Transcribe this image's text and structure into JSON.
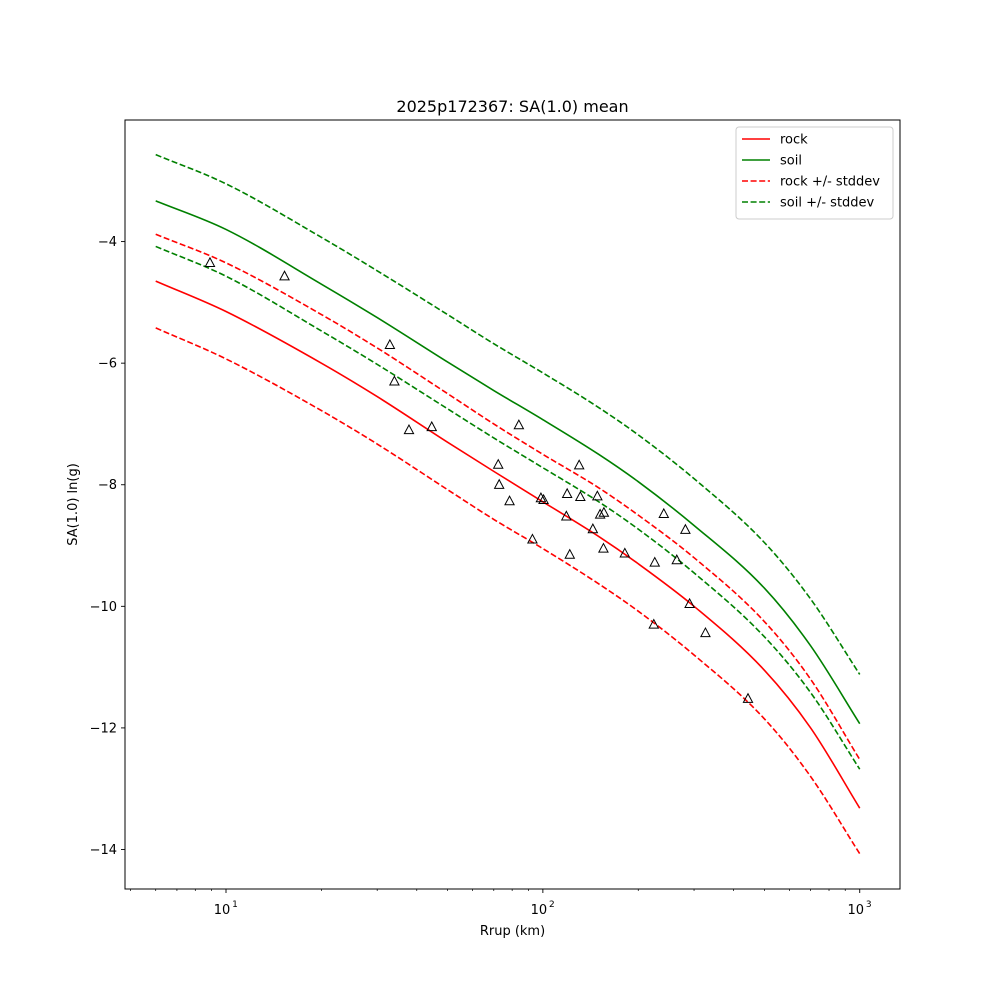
{
  "chart_data": {
    "type": "line",
    "title": "2025p172367: SA(1.0) mean",
    "xlabel": "Rrup (km)",
    "ylabel": "SA(1.0) ln(g)",
    "xscale": "log",
    "xlim": [
      4.8,
      1340
    ],
    "ylim": [
      -14.65,
      -2.0
    ],
    "x_ticks": [
      {
        "value": 10,
        "base": "10",
        "exp": "1"
      },
      {
        "value": 100,
        "base": "10",
        "exp": "2"
      },
      {
        "value": 1000,
        "base": "10",
        "exp": "3"
      }
    ],
    "y_ticks": [
      {
        "value": -4,
        "label": "−4"
      },
      {
        "value": -6,
        "label": "−6"
      },
      {
        "value": -8,
        "label": "−8"
      },
      {
        "value": -10,
        "label": "−10"
      },
      {
        "value": -12,
        "label": "−12"
      },
      {
        "value": -14,
        "label": "−14"
      }
    ],
    "grid": false,
    "legend_position": "top-right",
    "series": [
      {
        "name": "rock",
        "color": "#ff0000",
        "dash": "solid",
        "x": [
          6,
          10,
          20,
          30,
          50,
          70,
          100,
          150,
          200,
          300,
          500,
          700,
          1000
        ],
        "y": [
          -4.65,
          -5.15,
          -6.0,
          -6.55,
          -7.3,
          -7.78,
          -8.28,
          -8.85,
          -9.3,
          -10.0,
          -11.05,
          -12.0,
          -13.32
        ]
      },
      {
        "name": "soil",
        "color": "#008000",
        "dash": "solid",
        "x": [
          6,
          10,
          20,
          30,
          50,
          70,
          100,
          150,
          200,
          300,
          500,
          700,
          1000
        ],
        "y": [
          -3.33,
          -3.8,
          -4.7,
          -5.25,
          -5.98,
          -6.45,
          -6.93,
          -7.5,
          -7.95,
          -8.67,
          -9.7,
          -10.65,
          -11.93
        ]
      },
      {
        "name": "rock +/- stddev",
        "color": "#ff0000",
        "dash": "dashed",
        "x": [
          6,
          10,
          20,
          30,
          50,
          70,
          100,
          150,
          200,
          300,
          500,
          700,
          1000
        ],
        "y": [
          -3.88,
          -4.35,
          -5.2,
          -5.75,
          -6.5,
          -7.0,
          -7.5,
          -8.05,
          -8.5,
          -9.2,
          -10.25,
          -11.2,
          -12.52
        ]
      },
      {
        "name": "",
        "color": "#ff0000",
        "dash": "dashed",
        "x": [
          6,
          10,
          20,
          30,
          50,
          70,
          100,
          150,
          200,
          300,
          500,
          700,
          1000
        ],
        "y": [
          -5.42,
          -5.93,
          -6.78,
          -7.33,
          -8.08,
          -8.57,
          -9.05,
          -9.63,
          -10.08,
          -10.8,
          -11.85,
          -12.8,
          -14.07
        ]
      },
      {
        "name": "soil +/- stddev",
        "color": "#008000",
        "dash": "dashed",
        "x": [
          6,
          10,
          20,
          30,
          50,
          70,
          100,
          150,
          200,
          300,
          500,
          700,
          1000
        ],
        "y": [
          -2.57,
          -3.05,
          -3.93,
          -4.48,
          -5.2,
          -5.68,
          -6.16,
          -6.73,
          -7.18,
          -7.9,
          -8.95,
          -9.88,
          -11.12
        ]
      },
      {
        "name": "",
        "color": "#008000",
        "dash": "dashed",
        "x": [
          6,
          10,
          20,
          30,
          50,
          70,
          100,
          150,
          200,
          300,
          500,
          700,
          1000
        ],
        "y": [
          -4.08,
          -4.57,
          -5.47,
          -6.02,
          -6.75,
          -7.23,
          -7.72,
          -8.28,
          -8.73,
          -9.45,
          -10.5,
          -11.42,
          -12.68
        ]
      }
    ],
    "observations": {
      "name": "",
      "marker": "triangle",
      "x": [
        8.9,
        15.3,
        32.9,
        34.0,
        37.8,
        44.6,
        72.3,
        72.8,
        78.5,
        84.0,
        92.7,
        98.6,
        100.5,
        118.6,
        119.3,
        121.6,
        130.2,
        131.3,
        143.8,
        148.6,
        151.6,
        155.3,
        155.8,
        181.4,
        223.9,
        225.5,
        240.8,
        264.6,
        281.7,
        290.5,
        325.9,
        444.0
      ],
      "y": [
        -4.35,
        -4.57,
        -5.7,
        -6.3,
        -7.1,
        -7.05,
        -7.67,
        -8.0,
        -8.27,
        -7.02,
        -8.9,
        -8.22,
        -8.25,
        -8.52,
        -8.15,
        -9.15,
        -7.68,
        -8.2,
        -8.73,
        -8.19,
        -8.49,
        -9.05,
        -8.46,
        -9.13,
        -10.3,
        -9.28,
        -8.48,
        -9.24,
        -8.74,
        -9.96,
        -10.44,
        -11.52
      ]
    }
  }
}
